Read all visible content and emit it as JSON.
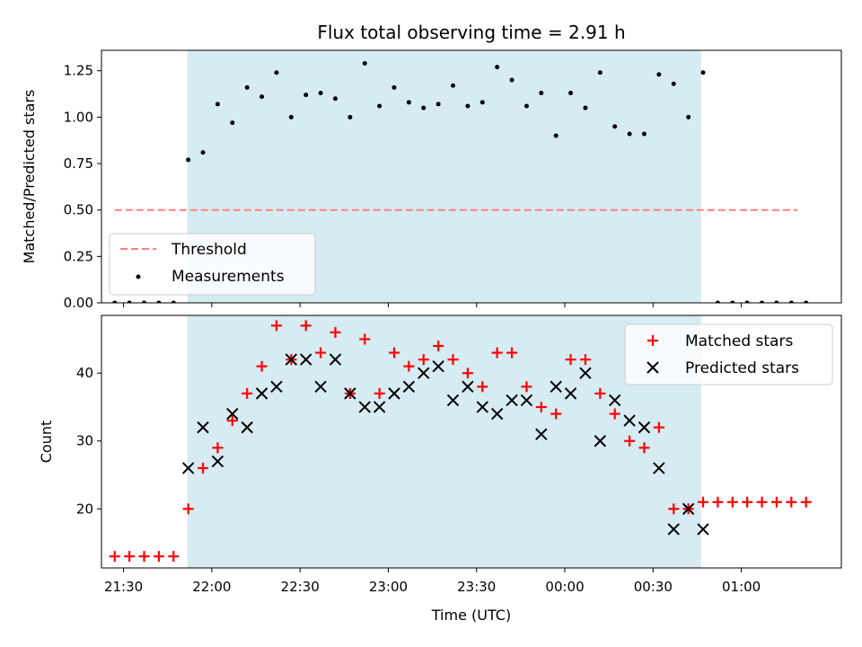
{
  "chart_data": {
    "type": "scatter",
    "title": "Flux total observing time = 2.91 h",
    "xlabel": "Time (UTC)",
    "x_ticks": [
      "21:30",
      "22:00",
      "22:30",
      "23:00",
      "23:30",
      "00:00",
      "00:30",
      "01:00"
    ],
    "x_tick_minutes": [
      0,
      30,
      60,
      90,
      120,
      150,
      180,
      210
    ],
    "x_range_minutes": [
      -7.5,
      244
    ],
    "observing_window_minutes": [
      21.7,
      196.3
    ],
    "colors": {
      "window": "#add8e6",
      "threshold": "#ff7f7f",
      "measurements": "#000000",
      "matched": "#ff0000",
      "predicted": "#000000"
    },
    "panels": [
      {
        "id": "ratio",
        "ylabel": "Matched/Predicted stars",
        "ylim": [
          0,
          1.36
        ],
        "yticks": [
          0.0,
          0.25,
          0.5,
          0.75,
          1.0,
          1.25
        ],
        "ytick_labels": [
          "0.00",
          "0.25",
          "0.50",
          "0.75",
          "1.00",
          "1.25"
        ],
        "legend_position": "lower-left",
        "series": [
          {
            "name": "Threshold",
            "kind": "dashed-line",
            "x": [
              -3,
              229
            ],
            "y": [
              0.5,
              0.5
            ]
          },
          {
            "name": "Measurements",
            "kind": "dot",
            "x": [
              -3,
              2,
              7,
              12,
              17,
              22,
              27,
              32,
              37,
              42,
              47,
              52,
              57,
              62,
              67,
              72,
              77,
              82,
              87,
              92,
              97,
              102,
              107,
              112,
              117,
              122,
              127,
              132,
              137,
              142,
              147,
              152,
              157,
              162,
              167,
              172,
              177,
              182,
              187,
              192,
              197,
              202,
              207,
              212,
              217,
              222,
              227,
              232
            ],
            "y": [
              0,
              0,
              0,
              0,
              0,
              0.77,
              0.81,
              1.07,
              0.97,
              1.16,
              1.11,
              1.24,
              1.0,
              1.12,
              1.13,
              1.1,
              1.0,
              1.29,
              1.06,
              1.16,
              1.08,
              1.05,
              1.07,
              1.17,
              1.06,
              1.08,
              1.27,
              1.2,
              1.06,
              1.13,
              0.9,
              1.13,
              1.05,
              1.24,
              0.95,
              0.91,
              0.91,
              1.23,
              1.18,
              1.0,
              1.24,
              0,
              0,
              0,
              0,
              0,
              0,
              0
            ]
          }
        ]
      },
      {
        "id": "count",
        "ylabel": "Count",
        "ylim": [
          11.3,
          48.5
        ],
        "yticks": [
          20,
          30,
          40
        ],
        "ytick_labels": [
          "20",
          "30",
          "40"
        ],
        "legend_position": "top-right",
        "series": [
          {
            "name": "Matched stars",
            "kind": "plus",
            "x": [
              -3,
              2,
              7,
              12,
              17,
              22,
              27,
              32,
              37,
              42,
              47,
              52,
              57,
              62,
              67,
              72,
              77,
              82,
              87,
              92,
              97,
              102,
              107,
              112,
              117,
              122,
              127,
              132,
              137,
              142,
              147,
              152,
              157,
              162,
              167,
              172,
              177,
              182,
              187,
              192,
              197,
              202,
              207,
              212,
              217,
              222,
              227,
              232
            ],
            "y": [
              13,
              13,
              13,
              13,
              13,
              20,
              26,
              29,
              33,
              37,
              41,
              47,
              42,
              47,
              43,
              46,
              37,
              45,
              37,
              43,
              41,
              42,
              44,
              42,
              40,
              38,
              43,
              43,
              38,
              35,
              34,
              42,
              42,
              37,
              34,
              30,
              29,
              32,
              20,
              20,
              21,
              21,
              21,
              21,
              21,
              21,
              21,
              21
            ]
          },
          {
            "name": "Predicted stars",
            "kind": "x",
            "x": [
              22,
              27,
              32,
              37,
              42,
              47,
              52,
              57,
              62,
              67,
              72,
              77,
              82,
              87,
              92,
              97,
              102,
              107,
              112,
              117,
              122,
              127,
              132,
              137,
              142,
              147,
              152,
              157,
              162,
              167,
              172,
              177,
              182,
              187,
              192,
              197
            ],
            "y": [
              26,
              32,
              27,
              34,
              32,
              37,
              38,
              42,
              42,
              38,
              42,
              37,
              35,
              35,
              37,
              38,
              40,
              41,
              36,
              38,
              35,
              34,
              36,
              36,
              31,
              38,
              37,
              40,
              30,
              36,
              33,
              32,
              26,
              17,
              20,
              17
            ]
          }
        ]
      }
    ]
  }
}
